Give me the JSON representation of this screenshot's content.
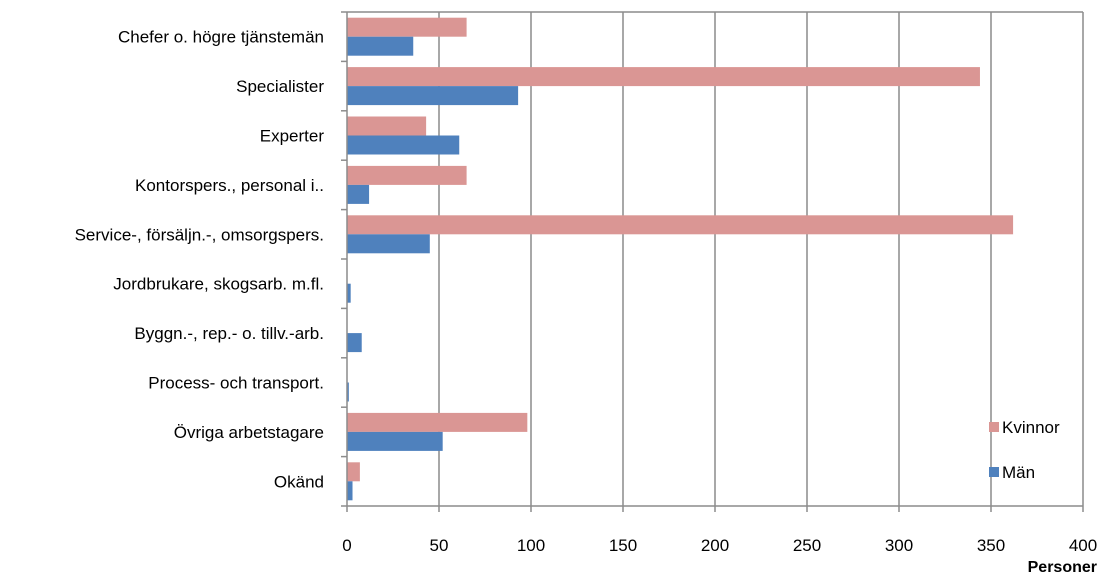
{
  "chart_data": {
    "type": "bar",
    "orientation": "horizontal",
    "categories": [
      "Chefer o. högre tjänstemän",
      "Specialister",
      "Experter",
      "Kontorspers., personal i..",
      "Service-, försäljn.-, omsorgspers.",
      "Jordbrukare, skogsarb. m.fl.",
      "Byggn.-, rep.- o. tillv.-arb.",
      "Process- och transport.",
      "Övriga arbetstagare",
      "Okänd"
    ],
    "series": [
      {
        "name": "Kvinnor",
        "color": "#DA9694",
        "values": [
          65,
          344,
          43,
          65,
          362,
          0,
          0,
          0,
          98,
          7
        ]
      },
      {
        "name": "Män",
        "color": "#4F81BD",
        "values": [
          36,
          93,
          61,
          12,
          45,
          2,
          8,
          1,
          52,
          3
        ]
      }
    ],
    "xlabel": "Personer",
    "ylabel": "",
    "title": "",
    "xlim": [
      0,
      400
    ],
    "xticks": [
      0,
      50,
      100,
      150,
      200,
      250,
      300,
      350,
      400
    ],
    "grid": "vertical",
    "legend": "bottom-right"
  }
}
